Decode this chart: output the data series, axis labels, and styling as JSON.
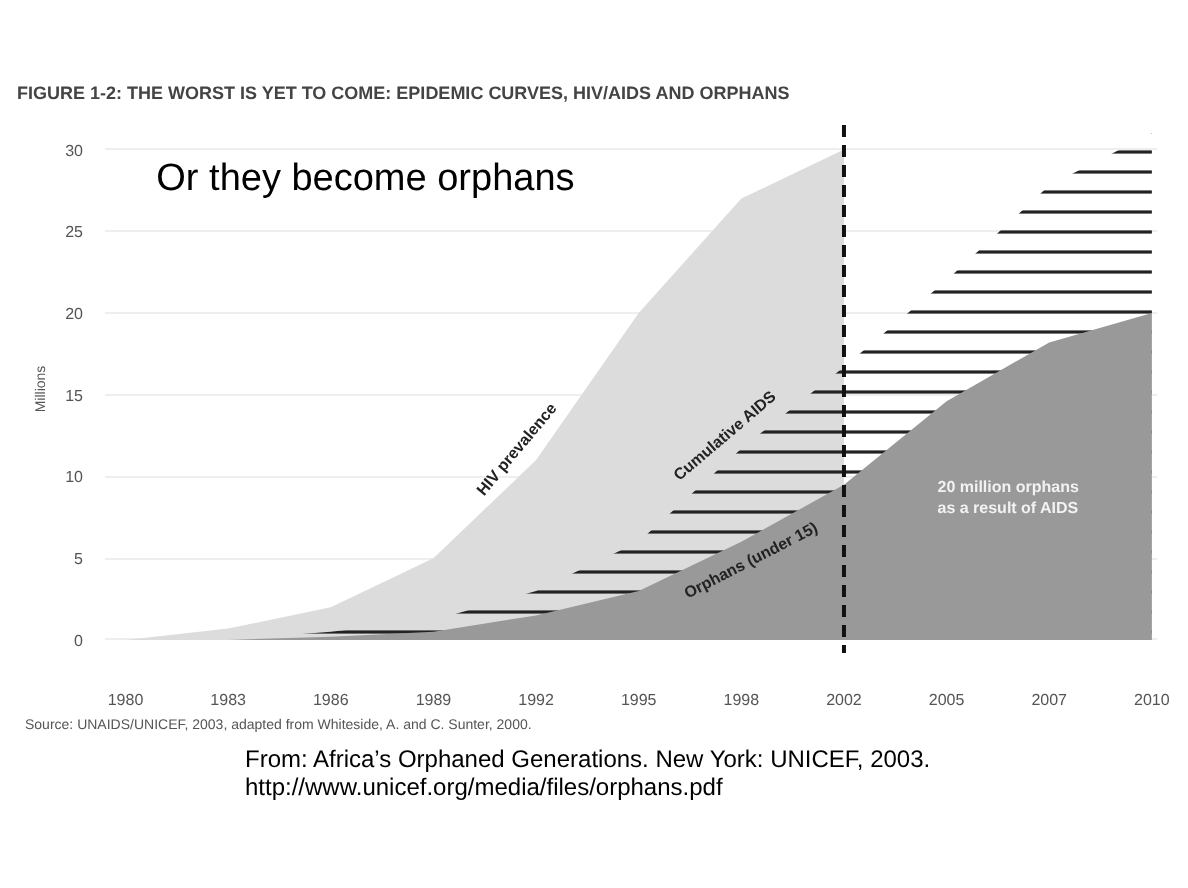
{
  "chart_data": {
    "type": "area",
    "title": "FIGURE 1-2: THE WORST IS YET TO COME: EPIDEMIC CURVES, HIV/AIDS AND ORPHANS",
    "ylabel": "Millions",
    "categories": [
      "1980",
      "1983",
      "1986",
      "1989",
      "1992",
      "1995",
      "1998",
      "2002",
      "2005",
      "2007",
      "2010"
    ],
    "series": [
      {
        "name": "HIV prevalence",
        "color": "#dcdcdc",
        "values": [
          0,
          0.7,
          2,
          5,
          11,
          20,
          27,
          30,
          null,
          null,
          null
        ]
      },
      {
        "name": "Cumulative AIDS",
        "color": "#222222",
        "values": [
          0,
          0,
          0.5,
          1.2,
          3,
          6,
          11.7,
          16.7,
          22,
          27.8,
          31
        ]
      },
      {
        "name": "Orphans (under 15)",
        "color": "#999999",
        "values": [
          0,
          0,
          0.2,
          0.5,
          1.5,
          3,
          6,
          9.5,
          14.6,
          18.2,
          20
        ]
      }
    ],
    "ylim": [
      -0.8,
      31.5
    ],
    "yticks": [
      0,
      5,
      10,
      15,
      20,
      25,
      30
    ],
    "grid": "y",
    "ref_lines": [
      {
        "axis": "x",
        "value": "2002",
        "color": "#111111",
        "line_style": "dashed"
      }
    ],
    "annotations": [
      "Or they become orphans",
      "20 million orphans\nas a result of AIDS",
      "Source: UNAIDS/UNICEF, 2003, adapted from Whiteside, A. and C. Sunter, 2000.",
      "From:  Africa’s Orphaned Generations.  New York: UNICEF, 2003.\nhttp://www.unicef.org/media/files/orphans.pdf"
    ]
  }
}
